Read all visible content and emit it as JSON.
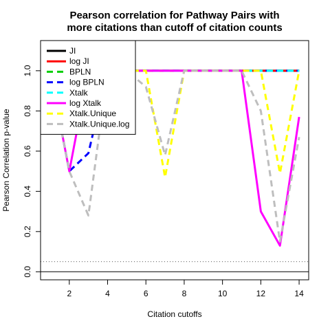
{
  "chart_data": {
    "type": "line",
    "title": "Pearson correlation for Pathway Pairs with",
    "subtitle": "more citations than cutoff of citation counts",
    "xlabel": "Citation cutoffs",
    "ylabel": "Pearson Correlation p-value",
    "xlim": [
      0.5,
      14.5
    ],
    "ylim": [
      -0.04,
      1.15
    ],
    "x_ticks": [
      2,
      4,
      6,
      8,
      10,
      12,
      14
    ],
    "y_ticks": [
      0.0,
      0.2,
      0.4,
      0.6,
      0.8,
      1.0
    ],
    "x_tick_labels": [
      "2",
      "4",
      "6",
      "8",
      "10",
      "12",
      "14"
    ],
    "y_tick_labels": [
      "0.0",
      "0.2",
      "0.4",
      "0.6",
      "0.8",
      "1.0"
    ],
    "x": [
      1,
      2,
      3,
      4,
      5,
      6,
      7,
      8,
      9,
      10,
      11,
      12,
      13,
      14
    ],
    "reference_lines": [
      {
        "y": 0.0,
        "style": "solid",
        "color": "#000000"
      },
      {
        "y": 0.05,
        "style": "dotted",
        "color": "#555555"
      }
    ],
    "legend_position": "top-left",
    "series": [
      {
        "name": "JI",
        "color": "#000000",
        "dash": "solid",
        "values": [
          1,
          1,
          1,
          1,
          1,
          1,
          1,
          1,
          1,
          1,
          1,
          1,
          1,
          1
        ]
      },
      {
        "name": "log JI",
        "color": "#ff0000",
        "dash": "solid",
        "values": [
          1,
          1,
          1,
          1,
          1,
          1,
          1,
          1,
          1,
          1,
          1,
          1,
          1,
          1
        ]
      },
      {
        "name": "BPLN",
        "color": "#00cd00",
        "dash": "dashed",
        "values": [
          1,
          1,
          1,
          1,
          1,
          1,
          1,
          1,
          1,
          1,
          1,
          1,
          1,
          1
        ]
      },
      {
        "name": "log BPLN",
        "color": "#0000ff",
        "dash": "dashed",
        "values": [
          1,
          0.5,
          0.59,
          1,
          1,
          1,
          1,
          1,
          1,
          1,
          1,
          1,
          1,
          1
        ]
      },
      {
        "name": "Xtalk",
        "color": "#00ffff",
        "dash": "dashed",
        "values": [
          1,
          1,
          1,
          1,
          1,
          1,
          1,
          1,
          1,
          1,
          1,
          1,
          1,
          1
        ]
      },
      {
        "name": "log Xtalk",
        "color": "#ff00ff",
        "dash": "solid",
        "values": [
          1,
          0.5,
          1,
          1,
          1,
          1,
          1,
          1,
          1,
          1,
          1,
          0.3,
          0.13,
          0.77
        ]
      },
      {
        "name": "Xtalk.Unique",
        "color": "#ffff00",
        "dash": "dashed",
        "values": [
          1,
          1,
          1,
          1,
          1,
          1,
          0.47,
          1,
          1,
          1,
          1,
          1,
          0.49,
          1
        ]
      },
      {
        "name": "Xtalk.Unique.log",
        "color": "#bebebe",
        "dash": "dashed",
        "values": [
          1,
          0.5,
          0.28,
          1,
          1,
          0.92,
          0.58,
          1,
          1,
          1,
          1,
          0.8,
          0.15,
          0.67
        ]
      }
    ]
  }
}
